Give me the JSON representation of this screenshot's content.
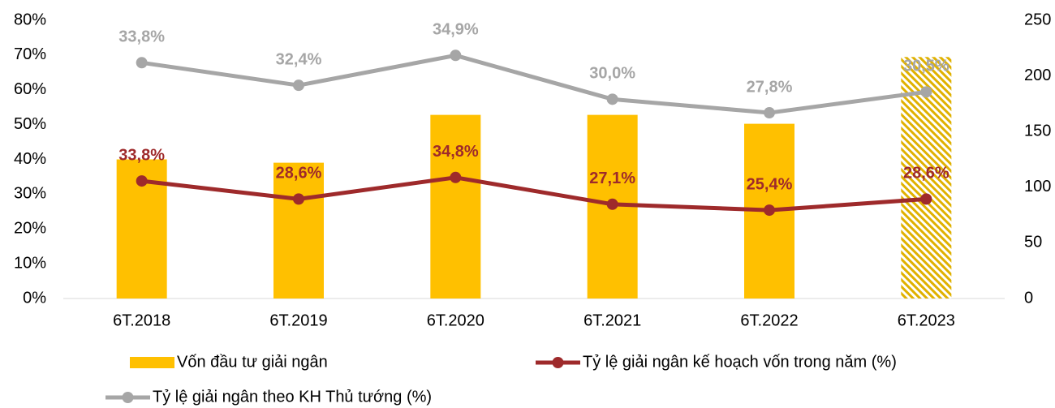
{
  "chart_data": {
    "type": "bar_line",
    "categories": [
      "6T.2018",
      "6T.2019",
      "6T.2020",
      "6T.2021",
      "6T.2022",
      "6T.2023"
    ],
    "ylim": [
      0,
      80
    ],
    "yticks": [
      {
        "value": 0,
        "label": "0%"
      },
      {
        "value": 10,
        "label": "10%"
      },
      {
        "value": 20,
        "label": "20%"
      },
      {
        "value": 30,
        "label": "30%"
      },
      {
        "value": 40,
        "label": "40%"
      },
      {
        "value": 50,
        "label": "50%"
      },
      {
        "value": 60,
        "label": "60%"
      },
      {
        "value": 70,
        "label": "70%"
      },
      {
        "value": 80,
        "label": "80%"
      }
    ],
    "y2lim": [
      0,
      250
    ],
    "y2ticks": [
      0,
      50,
      100,
      150,
      200,
      250
    ],
    "grid": false,
    "series": [
      {
        "name": "Vốn đầu tư giải ngân",
        "type": "bar",
        "axis": "y2",
        "color": "#ffc000",
        "values": [
          125,
          122,
          165,
          165,
          157,
          217
        ],
        "hatched": [
          false,
          false,
          false,
          false,
          false,
          true
        ]
      },
      {
        "name": "Tỷ lệ giải ngân kế hoạch vốn trong năm (%)",
        "type": "line",
        "color": "#9e2a2b",
        "values": [
          33.8,
          28.6,
          34.8,
          27.1,
          25.4,
          28.6
        ],
        "value_labels": [
          "33,8%",
          "28,6%",
          "34,8%",
          "27,1%",
          "25,4%",
          "28,6%"
        ]
      },
      {
        "name": "Tỷ lệ giải ngân theo KH Thủ tướng (%)",
        "type": "line",
        "color": "#a6a6a6",
        "values": [
          67.8,
          61.3,
          69.9,
          57.3,
          53.4,
          59.4
        ],
        "annotations": [
          "33,8%",
          "32,4%",
          "34,9%",
          "30,0%",
          "27,8%",
          "30,5%"
        ]
      }
    ]
  }
}
